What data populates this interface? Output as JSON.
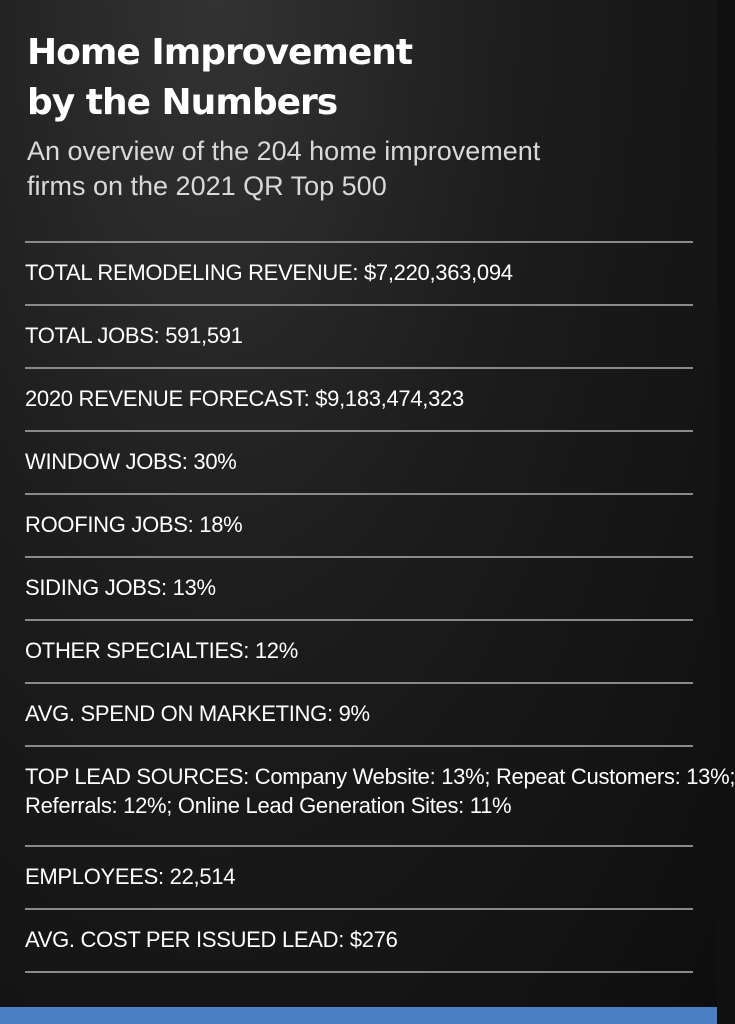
{
  "title": {
    "line1": "Home Improvement",
    "line2": "by the Numbers"
  },
  "subtitle": {
    "line1": "An overview of the 204 home improvement",
    "line2": "firms on the 2021 QR Top 500"
  },
  "stats": [
    {
      "line1": "TOTAL REMODELING REVENUE: $7,220,363,094"
    },
    {
      "line1": "TOTAL JOBS: 591,591"
    },
    {
      "line1": "2020 REVENUE FORECAST: $9,183,474,323"
    },
    {
      "line1": "WINDOW JOBS: 30%"
    },
    {
      "line1": "ROOFING JOBS: 18%"
    },
    {
      "line1": "SIDING JOBS: 13%"
    },
    {
      "line1": "OTHER SPECIALTIES: 12%"
    },
    {
      "line1": "AVG. SPEND ON MARKETING: 9%"
    },
    {
      "line1": "TOP LEAD SOURCES: Company Website: 13%; Repeat Customers: 13%;",
      "line2": "Referrals: 12%; Online Lead Generation Sites: 11%"
    },
    {
      "line1": "EMPLOYEES: 22,514"
    },
    {
      "line1": "AVG. COST PER ISSUED LEAD: $276"
    }
  ],
  "colors": {
    "background": "#1c1c1c",
    "text": "#ffffff",
    "divider": "#8a8a8a",
    "accent_bar": "#4d7fc4"
  }
}
